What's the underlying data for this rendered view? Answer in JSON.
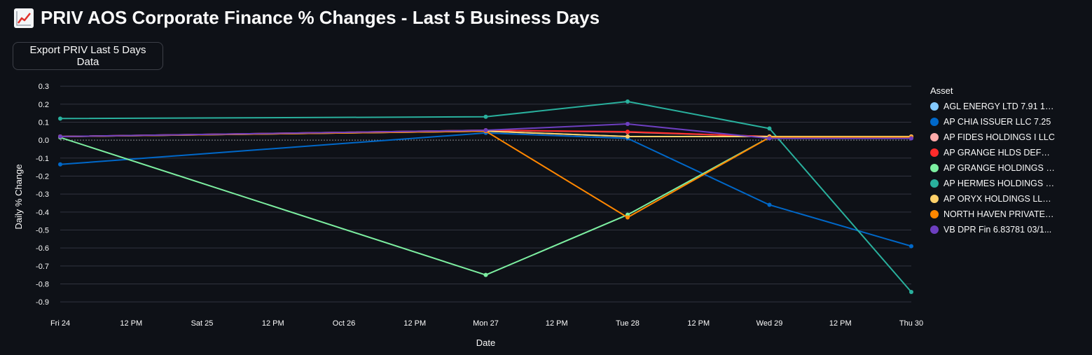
{
  "page": {
    "title": "PRIV AOS Corporate Finance % Changes - Last 5 Business Days",
    "title_icon": "chart-increasing-icon",
    "export_button_label": "Export PRIV Last 5 Days Data"
  },
  "chart_data": {
    "type": "line",
    "xlabel": "Date",
    "ylabel": "Daily % Change",
    "legend_title": "Asset",
    "legend_position": "right",
    "grid": true,
    "ylim": [
      -0.95,
      0.32
    ],
    "x_ticks": [
      "Fri 24",
      "12 PM",
      "Sat 25",
      "12 PM",
      "Oct 26",
      "12 PM",
      "Mon 27",
      "12 PM",
      "Tue 28",
      "12 PM",
      "Wed 29",
      "12 PM",
      "Thu 30"
    ],
    "y_ticks": [
      "0.3",
      "0.2",
      "0.1",
      "0.0",
      "-0.1",
      "-0.2",
      "-0.3",
      "-0.4",
      "-0.5",
      "-0.6",
      "-0.7",
      "-0.8",
      "-0.9"
    ],
    "x_dates": [
      "Fri 24",
      "Mon 27",
      "Tue 28",
      "Wed 29",
      "Thu 30"
    ],
    "series": [
      {
        "name": "AGL ENERGY LTD 7.91 12/...",
        "color": "#83c9ff",
        "x": [
          "Fri 24",
          "Mon 27",
          "Tue 28",
          "Wed 29",
          "Thu 30"
        ],
        "values": [
          0.02,
          0.05,
          0.02,
          0.02,
          0.02
        ]
      },
      {
        "name": "AP CHIA ISSUER LLC 7.25",
        "color": "#0068c9",
        "x": [
          "Fri 24",
          "Mon 27",
          "Tue 28",
          "Wed 29",
          "Thu 30"
        ],
        "values": [
          -0.135,
          0.04,
          0.01,
          -0.36,
          -0.59
        ]
      },
      {
        "name": "AP FIDES HOLDINGS I LLC",
        "color": "#ffabab",
        "x": [
          "Fri 24",
          "Mon 27",
          "Tue 28",
          "Wed 29",
          "Thu 30"
        ],
        "values": [
          0.02,
          0.055,
          0.045,
          0.02,
          0.02
        ]
      },
      {
        "name": "AP GRANGE HLDS DEFER...",
        "color": "#ff2b2b",
        "x": [
          "Fri 24",
          "Mon 27",
          "Tue 28",
          "Wed 29",
          "Thu 30"
        ],
        "values": [
          0.02,
          0.055,
          0.047,
          0.02,
          0.02
        ]
      },
      {
        "name": "AP GRANGE HOLDINGS L...",
        "color": "#7defa1",
        "x": [
          "Fri 24",
          "Mon 27",
          "Tue 28",
          "Wed 29"
        ],
        "values": [
          0.015,
          -0.75,
          -0.415,
          0.015
        ]
      },
      {
        "name": "AP HERMES HOLDINGS I ...",
        "color": "#29b09d",
        "x": [
          "Fri 24",
          "Mon 27",
          "Tue 28",
          "Wed 29",
          "Thu 30"
        ],
        "values": [
          0.12,
          0.13,
          0.215,
          0.065,
          -0.845
        ]
      },
      {
        "name": "AP ORYX HOLDINGS LLC 6.1",
        "color": "#ffd16a",
        "x": [
          "Fri 24",
          "Mon 27",
          "Tue 28",
          "Wed 29",
          "Thu 30"
        ],
        "values": [
          0.02,
          0.05,
          0.02,
          0.02,
          0.02
        ]
      },
      {
        "name": "NORTH HAVEN PRIVATE I...",
        "color": "#ff8700",
        "x": [
          "Fri 24",
          "Mon 27",
          "Tue 28",
          "Wed 29",
          "Thu 30"
        ],
        "values": [
          0.02,
          0.05,
          -0.43,
          0.015,
          0.015
        ]
      },
      {
        "name": "VB DPR Fin 6.83781 03/1...",
        "color": "#6d3fc0",
        "x": [
          "Fri 24",
          "Mon 27",
          "Tue 28",
          "Wed 29",
          "Thu 30"
        ],
        "values": [
          0.02,
          0.055,
          0.09,
          0.01,
          0.01
        ]
      }
    ]
  }
}
